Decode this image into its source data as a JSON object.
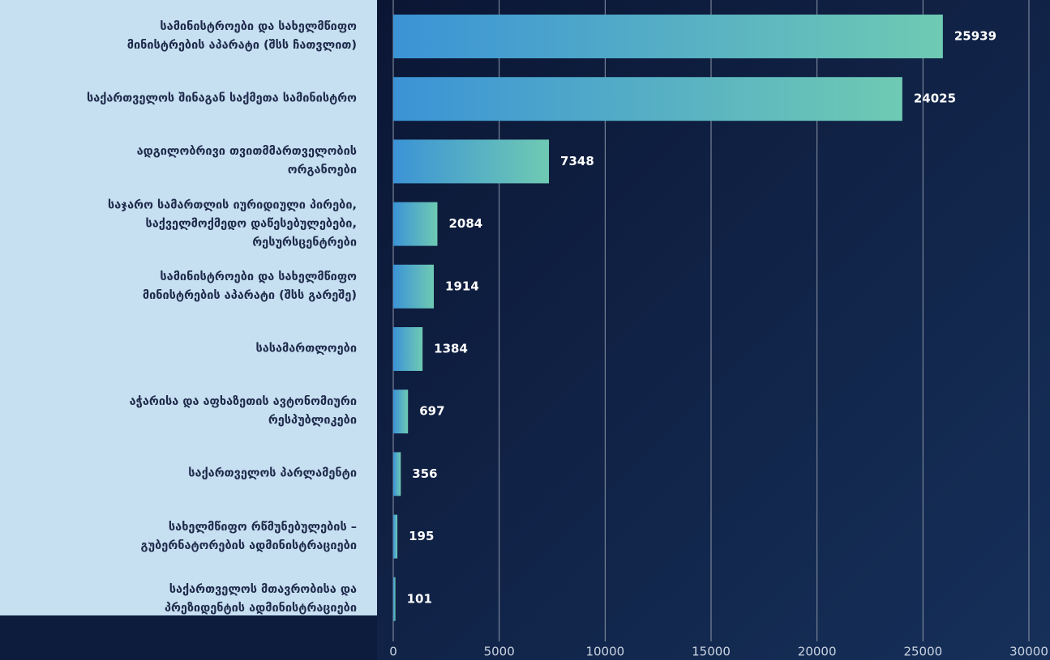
{
  "chart_data": {
    "type": "bar",
    "orientation": "horizontal",
    "categories": [
      "სამინისტროები და სახელმწიფო\nმინისტრების აპარატი (შსს ჩათვლით)",
      "საქართველოს შინაგან საქმეთა სამინისტრო",
      "ადგილობრივი თვითმმართველობის\nორგანოები",
      "საჯარო სამართლის იურიდიული პირები,\nსაქველმოქმედო დაწესებულებები,\nრესურსცენტრები",
      "სამინისტროები და სახელმწიფო\nმინისტრების აპარატი (შსს გარეშე)",
      "სასამართლოები",
      "აჭარისა და აფხაზეთის ავტონომიური\nრესპუბლიკები",
      "საქართველოს პარლამენტი",
      "სახელმწიფო რწმუნებულების –\nგუბერნატორების ადმინისტრაციები",
      "საქართველოს მთავრობისა და\nპრეზიდენტის ადმინისტრაციები"
    ],
    "values": [
      25939,
      24025,
      7348,
      2084,
      1914,
      1384,
      697,
      356,
      195,
      101
    ],
    "color_start": "#3b93d6",
    "color_end": "#6fcab3",
    "xlim": [
      0,
      30000
    ],
    "xticks": [
      0,
      5000,
      10000,
      15000,
      20000,
      25000,
      30000
    ],
    "grid": true
  }
}
